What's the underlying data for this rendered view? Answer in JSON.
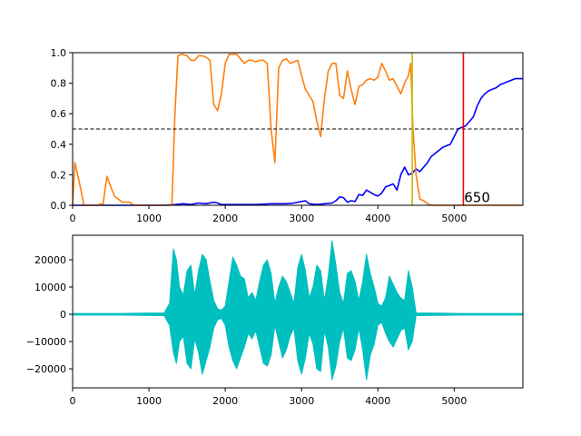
{
  "chart_data": [
    {
      "type": "line",
      "title": "",
      "xlabel": "",
      "ylabel": "",
      "xlim": [
        0,
        5900
      ],
      "ylim": [
        0,
        1.0
      ],
      "x_ticks": [
        0,
        1000,
        2000,
        3000,
        4000,
        5000
      ],
      "y_ticks": [
        0.0,
        0.2,
        0.4,
        0.6,
        0.8,
        1.0
      ],
      "x_tick_labels": [
        "0",
        "1000",
        "2000",
        "3000",
        "4000",
        "5000"
      ],
      "y_tick_labels": [
        "0.0",
        "0.2",
        "0.4",
        "0.6",
        "0.8",
        "1.0"
      ],
      "grid": false,
      "series": [
        {
          "color": "#0000ff",
          "x": [
            0,
            200,
            400,
            600,
            800,
            1000,
            1200,
            1350,
            1450,
            1550,
            1650,
            1750,
            1850,
            1900,
            1950,
            2000,
            2200,
            2400,
            2600,
            2700,
            2800,
            2900,
            2950,
            3000,
            3050,
            3100,
            3200,
            3300,
            3400,
            3450,
            3500,
            3550,
            3600,
            3650,
            3700,
            3750,
            3800,
            3850,
            3900,
            3950,
            4000,
            4050,
            4100,
            4150,
            4200,
            4250,
            4300,
            4350,
            4400,
            4450,
            4500,
            4550,
            4600,
            4650,
            4700,
            4750,
            4800,
            4850,
            4900,
            4950,
            5000,
            5050,
            5100,
            5150,
            5200,
            5250,
            5300,
            5350,
            5400,
            5450,
            5500,
            5550,
            5600,
            5650,
            5700,
            5750,
            5800,
            5850,
            5900
          ],
          "y": [
            0.0,
            0.0,
            0.0,
            0.0,
            0.0,
            0.0,
            0.0,
            0.005,
            0.01,
            0.005,
            0.015,
            0.01,
            0.02,
            0.015,
            0.005,
            0.005,
            0.005,
            0.005,
            0.01,
            0.01,
            0.01,
            0.015,
            0.02,
            0.025,
            0.03,
            0.01,
            0.005,
            0.01,
            0.015,
            0.03,
            0.055,
            0.05,
            0.02,
            0.03,
            0.025,
            0.07,
            0.065,
            0.1,
            0.085,
            0.07,
            0.06,
            0.08,
            0.12,
            0.13,
            0.14,
            0.1,
            0.2,
            0.25,
            0.2,
            0.21,
            0.24,
            0.22,
            0.25,
            0.28,
            0.32,
            0.34,
            0.36,
            0.38,
            0.39,
            0.4,
            0.45,
            0.5,
            0.51,
            0.52,
            0.55,
            0.58,
            0.65,
            0.7,
            0.73,
            0.75,
            0.76,
            0.77,
            0.79,
            0.8,
            0.81,
            0.82,
            0.83,
            0.83,
            0.83
          ]
        },
        {
          "color": "#ff7f0e",
          "x": [
            0,
            30,
            80,
            150,
            300,
            400,
            450,
            500,
            550,
            650,
            750,
            800,
            900,
            1000,
            1100,
            1200,
            1300,
            1340,
            1380,
            1430,
            1500,
            1550,
            1600,
            1650,
            1700,
            1750,
            1800,
            1850,
            1900,
            1950,
            2000,
            2050,
            2100,
            2150,
            2200,
            2250,
            2300,
            2350,
            2400,
            2450,
            2500,
            2550,
            2600,
            2650,
            2700,
            2750,
            2800,
            2850,
            2900,
            2950,
            3000,
            3050,
            3100,
            3150,
            3200,
            3250,
            3300,
            3350,
            3400,
            3450,
            3500,
            3550,
            3600,
            3650,
            3700,
            3750,
            3800,
            3850,
            3900,
            3950,
            4000,
            4050,
            4100,
            4150,
            4200,
            4250,
            4300,
            4350,
            4400,
            4430,
            4460,
            4500,
            4550,
            4600,
            4650,
            4700,
            4800,
            4900,
            5000,
            5200,
            5500,
            5900
          ],
          "y": [
            0.0,
            0.28,
            0.17,
            0.0,
            0.0,
            0.01,
            0.19,
            0.12,
            0.06,
            0.02,
            0.02,
            0.0,
            0.0,
            0.0,
            0.0,
            0.0,
            0.0,
            0.6,
            0.98,
            0.99,
            0.98,
            0.95,
            0.95,
            0.98,
            0.98,
            0.97,
            0.95,
            0.66,
            0.62,
            0.73,
            0.93,
            0.99,
            0.99,
            0.99,
            0.96,
            0.93,
            0.95,
            0.95,
            0.94,
            0.95,
            0.95,
            0.93,
            0.5,
            0.28,
            0.9,
            0.95,
            0.96,
            0.93,
            0.94,
            0.95,
            0.85,
            0.76,
            0.72,
            0.68,
            0.55,
            0.45,
            0.7,
            0.88,
            0.93,
            0.93,
            0.72,
            0.7,
            0.88,
            0.76,
            0.66,
            0.78,
            0.79,
            0.82,
            0.83,
            0.82,
            0.84,
            0.93,
            0.88,
            0.82,
            0.83,
            0.78,
            0.73,
            0.8,
            0.85,
            0.93,
            0.5,
            0.2,
            0.04,
            0.03,
            0.01,
            0.0,
            0.0,
            0.0,
            0.0,
            0.0,
            0.0,
            0.0
          ]
        }
      ],
      "reference_lines": [
        {
          "orientation": "horizontal",
          "value": 0.5,
          "color": "#000000",
          "style": "dashed"
        },
        {
          "orientation": "vertical",
          "value": 4450,
          "color": "#bfbf00",
          "style": "solid"
        },
        {
          "orientation": "vertical",
          "value": 5120,
          "color": "#ff0000",
          "style": "solid"
        }
      ],
      "annotations": [
        {
          "text": "650",
          "x": 5130,
          "y": 0.02
        }
      ]
    },
    {
      "type": "line",
      "title": "",
      "xlabel": "",
      "ylabel": "",
      "xlim": [
        0,
        5900
      ],
      "ylim": [
        -27000,
        29000
      ],
      "x_ticks": [
        0,
        1000,
        2000,
        3000,
        4000,
        5000
      ],
      "y_ticks": [
        -20000,
        -10000,
        0,
        10000,
        20000
      ],
      "x_tick_labels": [
        "0",
        "1000",
        "2000",
        "3000",
        "4000",
        "5000"
      ],
      "y_tick_labels": [
        "−20000",
        "−10000",
        "0",
        "10000",
        "20000"
      ],
      "grid": false,
      "series": [
        {
          "color": "#00bfbf",
          "style": "waveform",
          "x": [
            0,
            300,
            600,
            900,
            1200,
            1270,
            1320,
            1360,
            1400,
            1450,
            1500,
            1550,
            1600,
            1650,
            1700,
            1750,
            1800,
            1850,
            1900,
            1950,
            2000,
            2050,
            2100,
            2150,
            2200,
            2250,
            2300,
            2350,
            2400,
            2450,
            2500,
            2550,
            2600,
            2650,
            2700,
            2750,
            2800,
            2850,
            2900,
            2950,
            3000,
            3050,
            3100,
            3150,
            3200,
            3250,
            3300,
            3350,
            3400,
            3450,
            3500,
            3550,
            3600,
            3650,
            3700,
            3750,
            3800,
            3850,
            3900,
            3950,
            4000,
            4050,
            4100,
            4150,
            4200,
            4250,
            4300,
            4350,
            4400,
            4450,
            4500,
            4800,
            5100,
            5400,
            5700,
            5900
          ],
          "y_max": [
            300,
            300,
            300,
            400,
            500,
            4000,
            24000,
            20000,
            10000,
            7000,
            16000,
            18000,
            7000,
            16000,
            22000,
            20000,
            12000,
            5000,
            2000,
            1500,
            3000,
            12000,
            21000,
            18000,
            14000,
            13000,
            6000,
            8000,
            5000,
            12000,
            18000,
            20000,
            15000,
            4000,
            10000,
            14000,
            12000,
            8000,
            4000,
            17000,
            22000,
            16000,
            6000,
            10000,
            18000,
            16000,
            5000,
            14000,
            27000,
            18000,
            8000,
            4000,
            15000,
            16000,
            12000,
            5000,
            12000,
            22000,
            15000,
            10000,
            4000,
            3000,
            6000,
            14000,
            11000,
            8000,
            6000,
            5000,
            16000,
            10000,
            500,
            400,
            300,
            300,
            300,
            300
          ],
          "y_min": [
            -300,
            -300,
            -300,
            -400,
            -500,
            -4000,
            -14000,
            -18000,
            -10000,
            -8000,
            -18000,
            -20000,
            -9000,
            -14000,
            -22000,
            -17000,
            -12000,
            -5000,
            -2000,
            -1500,
            -4000,
            -12000,
            -17000,
            -20000,
            -16000,
            -12000,
            -7000,
            -9000,
            -6000,
            -12000,
            -18000,
            -19000,
            -15000,
            -4000,
            -10000,
            -16000,
            -13000,
            -8000,
            -5000,
            -17000,
            -22000,
            -16000,
            -7000,
            -11000,
            -20000,
            -21000,
            -6000,
            -12000,
            -24000,
            -19000,
            -10000,
            -5000,
            -16000,
            -17000,
            -13000,
            -5000,
            -13000,
            -24000,
            -15000,
            -11000,
            -4000,
            -3000,
            -7000,
            -10000,
            -12000,
            -9000,
            -6000,
            -5000,
            -13000,
            -10000,
            -500,
            -400,
            -300,
            -300,
            -300,
            -300
          ]
        }
      ]
    }
  ]
}
